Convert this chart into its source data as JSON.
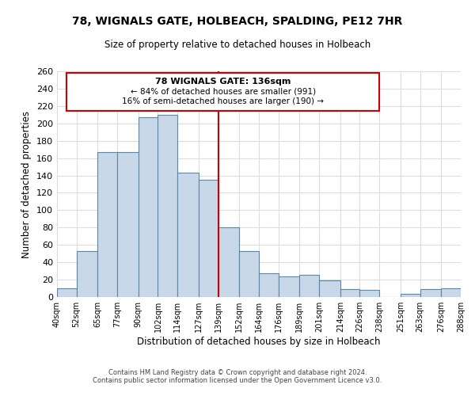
{
  "title": "78, WIGNALS GATE, HOLBEACH, SPALDING, PE12 7HR",
  "subtitle": "Size of property relative to detached houses in Holbeach",
  "xlabel": "Distribution of detached houses by size in Holbeach",
  "ylabel": "Number of detached properties",
  "footer_line1": "Contains HM Land Registry data © Crown copyright and database right 2024.",
  "footer_line2": "Contains public sector information licensed under the Open Government Licence v3.0.",
  "bar_edges": [
    40,
    52,
    65,
    77,
    90,
    102,
    114,
    127,
    139,
    152,
    164,
    176,
    189,
    201,
    214,
    226,
    238,
    251,
    263,
    276,
    288
  ],
  "bar_heights": [
    10,
    53,
    167,
    167,
    207,
    210,
    143,
    135,
    80,
    53,
    27,
    24,
    26,
    19,
    9,
    8,
    0,
    4,
    9,
    10
  ],
  "tick_labels": [
    "40sqm",
    "52sqm",
    "65sqm",
    "77sqm",
    "90sqm",
    "102sqm",
    "114sqm",
    "127sqm",
    "139sqm",
    "152sqm",
    "164sqm",
    "176sqm",
    "189sqm",
    "201sqm",
    "214sqm",
    "226sqm",
    "238sqm",
    "251sqm",
    "263sqm",
    "276sqm",
    "288sqm"
  ],
  "bar_color": "#c8d8e8",
  "bar_edge_color": "#5588aa",
  "vline_x": 139,
  "vline_color": "#cc0000",
  "annotation_title": "78 WIGNALS GATE: 136sqm",
  "annotation_line1": "← 84% of detached houses are smaller (991)",
  "annotation_line2": "16% of semi-detached houses are larger (190) →",
  "annotation_box_color": "#ffffff",
  "annotation_box_edge": "#cc0000",
  "ylim": [
    0,
    260
  ],
  "yticks": [
    0,
    20,
    40,
    60,
    80,
    100,
    120,
    140,
    160,
    180,
    200,
    220,
    240,
    260
  ],
  "background_color": "#ffffff",
  "grid_color": "#dddddd"
}
